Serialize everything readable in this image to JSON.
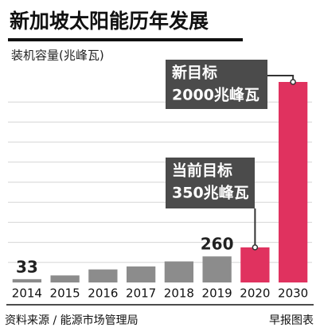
{
  "chart_data": {
    "type": "bar",
    "title": "新加坡太阳能历年发展",
    "subtitle": "装机容量(兆峰瓦)",
    "categories": [
      "2014",
      "2015",
      "2016",
      "2017",
      "2018",
      "2019",
      "2020",
      "2030"
    ],
    "values": [
      33,
      70,
      130,
      160,
      210,
      260,
      350,
      2000
    ],
    "value_labels": [
      "33",
      null,
      null,
      null,
      null,
      "260",
      null,
      null
    ],
    "colors": [
      "#8c8c8c",
      "#8c8c8c",
      "#8c8c8c",
      "#8c8c8c",
      "#8c8c8c",
      "#8c8c8c",
      "#e0325f",
      "#e0325f"
    ],
    "ylim": [
      0,
      2000
    ],
    "yticks": [
      200,
      400,
      600,
      800,
      1000,
      1200,
      1400,
      1600,
      1800
    ],
    "grid": true,
    "annotations": [
      {
        "lines": [
          "新目标",
          "2000兆峰瓦"
        ]
      },
      {
        "lines": [
          "当前目标",
          "350兆峰瓦"
        ]
      }
    ],
    "source": "资料来源 / 能源市场管理局",
    "credit": "早报图表"
  }
}
